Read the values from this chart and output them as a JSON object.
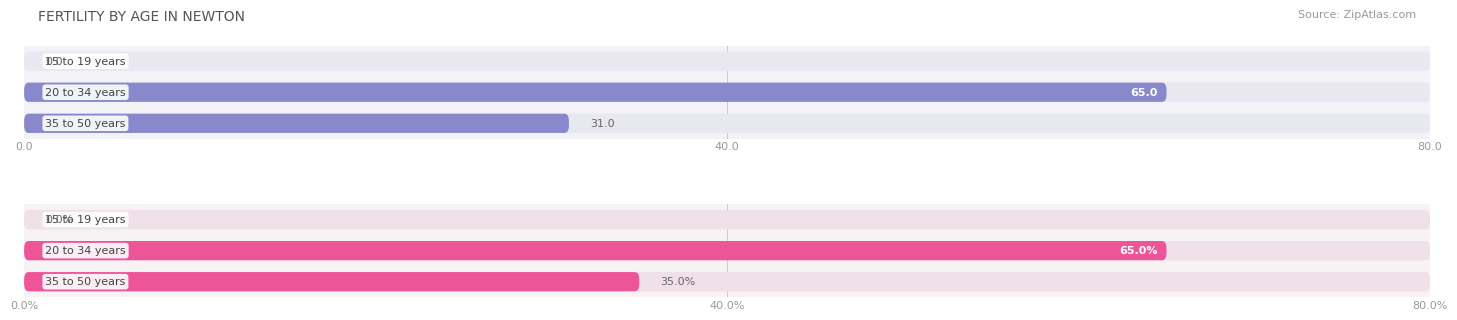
{
  "title": "FERTILITY BY AGE IN NEWTON",
  "source": "Source: ZipAtlas.com",
  "top_section": {
    "categories": [
      "15 to 19 years",
      "20 to 34 years",
      "35 to 50 years"
    ],
    "values": [
      0.0,
      65.0,
      31.0
    ],
    "xlim": [
      0,
      80
    ],
    "xticks": [
      0.0,
      40.0,
      80.0
    ],
    "xtick_labels": [
      "0.0",
      "40.0",
      "80.0"
    ],
    "bar_color": "#8888CC",
    "bar_bg_color": "#E8E8F0",
    "value_labels": [
      "0.0",
      "65.0",
      "31.0"
    ],
    "value_label_inside": [
      false,
      true,
      false
    ],
    "section_bg": "#F2F2F7"
  },
  "bottom_section": {
    "categories": [
      "15 to 19 years",
      "20 to 34 years",
      "35 to 50 years"
    ],
    "values": [
      0.0,
      65.0,
      35.0
    ],
    "xlim": [
      0,
      80
    ],
    "xticks": [
      0.0,
      40.0,
      80.0
    ],
    "xtick_labels": [
      "0.0%",
      "40.0%",
      "80.0%"
    ],
    "bar_color": "#EE5599",
    "bar_bg_color": "#F0E0E8",
    "value_labels": [
      "0.0%",
      "65.0%",
      "35.0%"
    ],
    "value_label_inside": [
      false,
      true,
      false
    ],
    "section_bg": "#F7F2F4"
  },
  "title_fontsize": 10,
  "label_fontsize": 8,
  "value_fontsize": 8,
  "axis_fontsize": 8,
  "source_fontsize": 8
}
